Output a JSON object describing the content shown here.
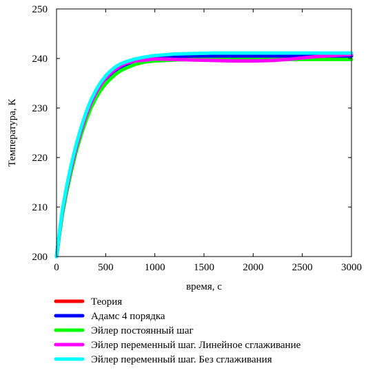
{
  "chart_data": {
    "type": "line",
    "xlabel": "время, с",
    "ylabel": "Температура, К",
    "xlim": [
      0,
      3000
    ],
    "ylim": [
      200,
      250
    ],
    "xticks": [
      0,
      500,
      1000,
      1500,
      2000,
      2500,
      3000
    ],
    "yticks": [
      200,
      210,
      220,
      230,
      240,
      250
    ],
    "grid": false,
    "legend_position": "bottom",
    "series": [
      {
        "name": "Теория",
        "color": "#ff0000",
        "x": [
          0,
          30,
          60,
          100,
          150,
          200,
          250,
          300,
          350,
          400,
          450,
          500,
          550,
          600,
          650,
          700,
          800,
          900,
          1000,
          1200,
          1400,
          1600,
          1800,
          2000,
          2200,
          2400,
          2600,
          2800,
          3000
        ],
        "y": [
          200,
          204.6,
          208.8,
          213.0,
          217.6,
          221.6,
          225.0,
          228.0,
          230.4,
          232.4,
          234.0,
          235.3,
          236.3,
          237.2,
          237.9,
          238.4,
          239.3,
          239.8,
          240.1,
          240.3,
          240.4,
          240.5,
          240.5,
          240.5,
          240.5,
          240.5,
          240.5,
          240.5,
          240.5
        ]
      },
      {
        "name": "Адамс 4 порядка",
        "color": "#0000ff",
        "x": [
          0,
          30,
          60,
          100,
          150,
          200,
          250,
          300,
          350,
          400,
          450,
          500,
          550,
          600,
          650,
          700,
          800,
          900,
          1000,
          1200,
          1400,
          1600,
          1800,
          2000,
          2200,
          2400,
          2600,
          2800,
          3000
        ],
        "y": [
          200,
          204.7,
          208.9,
          213.1,
          217.7,
          221.7,
          225.1,
          228.0,
          230.4,
          232.4,
          234.0,
          235.3,
          236.3,
          237.2,
          237.9,
          238.5,
          239.4,
          239.8,
          240.1,
          240.3,
          240.4,
          240.5,
          240.5,
          240.5,
          240.5,
          240.5,
          240.5,
          240.5,
          240.5
        ]
      },
      {
        "name": "Эйлер постоянный шаг",
        "color": "#00ff00",
        "x": [
          0,
          30,
          60,
          100,
          150,
          200,
          250,
          300,
          350,
          400,
          450,
          500,
          550,
          600,
          650,
          700,
          800,
          900,
          1000,
          1200,
          1400,
          1600,
          1800,
          2000,
          2200,
          2400,
          2600,
          2800,
          3000
        ],
        "y": [
          200,
          204.4,
          208.5,
          212.7,
          217.2,
          221.2,
          224.6,
          227.5,
          230.0,
          232.0,
          233.6,
          234.9,
          235.9,
          236.8,
          237.5,
          238.0,
          238.8,
          239.3,
          239.5,
          239.7,
          239.8,
          239.8,
          239.8,
          239.8,
          239.8,
          239.8,
          239.8,
          239.8,
          239.8
        ]
      },
      {
        "name": "Эйлер переменный шаг. Линейное сглаживание",
        "color": "#ff00ff",
        "x": [
          0,
          30,
          60,
          100,
          150,
          200,
          250,
          300,
          350,
          400,
          450,
          500,
          550,
          600,
          650,
          700,
          800,
          900,
          1000,
          1200,
          1400,
          1600,
          1800,
          2000,
          2200,
          2400,
          2600,
          2800,
          3000
        ],
        "y": [
          200,
          204.8,
          209.1,
          213.4,
          218.0,
          222.0,
          225.5,
          228.5,
          231.0,
          233.0,
          234.7,
          236.0,
          237.0,
          237.8,
          238.5,
          239.0,
          239.5,
          239.7,
          239.9,
          239.8,
          239.7,
          239.6,
          239.5,
          239.5,
          239.6,
          239.9,
          240.3,
          240.6,
          240.8
        ]
      },
      {
        "name": "Эйлер переменный шаг. Без сглаживания",
        "color": "#00ffff",
        "x": [
          0,
          30,
          60,
          100,
          150,
          200,
          250,
          300,
          350,
          400,
          450,
          500,
          550,
          600,
          650,
          700,
          800,
          900,
          1000,
          1200,
          1400,
          1600,
          1800,
          2000,
          2200,
          2400,
          2600,
          2800,
          3000
        ],
        "y": [
          200,
          205.0,
          209.5,
          213.9,
          218.6,
          222.6,
          226.1,
          229.1,
          231.6,
          233.6,
          235.2,
          236.5,
          237.5,
          238.3,
          238.9,
          239.3,
          239.9,
          240.3,
          240.6,
          240.9,
          241.0,
          241.1,
          241.1,
          241.1,
          241.1,
          241.1,
          241.1,
          241.1,
          241.1
        ]
      }
    ]
  }
}
